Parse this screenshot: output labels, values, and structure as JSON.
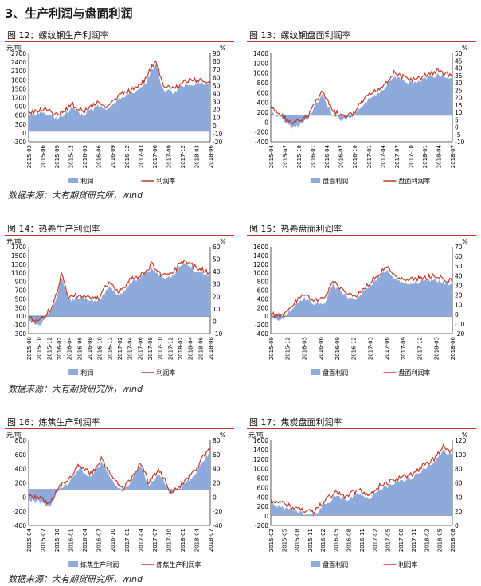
{
  "section_title": "3、生产利润与盘面利润",
  "source_text": "数据来源：大有期货研究所，wind",
  "colors": {
    "area": "#8eaadb",
    "line": "#c0392b",
    "title_rule": "#c0392b"
  },
  "charts": [
    {
      "title": "图 12：螺纹钢生产利润率",
      "left_unit": "元/吨",
      "right_unit": "%",
      "left_ticks": [
        "2700",
        "2400",
        "2100",
        "1800",
        "1500",
        "1200",
        "900",
        "600",
        "300",
        "0",
        "-300"
      ],
      "right_ticks": [
        "90",
        "80",
        "70",
        "60",
        "50",
        "40",
        "30",
        "20",
        "10",
        "0",
        "-10",
        "-20"
      ],
      "x_ticks": [
        "2015-03",
        "2015-06",
        "2015-09",
        "2015-12",
        "2016-03",
        "2016-06",
        "2016-09",
        "2016-12",
        "2017-03",
        "2017-06",
        "2017-09",
        "2017-12",
        "2018-03",
        "2018-06"
      ],
      "legend": [
        "利润",
        "利润率"
      ]
    },
    {
      "title": "图 13：螺纹钢盘面利润率",
      "left_unit": "",
      "right_unit": "%",
      "left_ticks": [
        "1400",
        "1200",
        "1000",
        "800",
        "600",
        "400",
        "200",
        "0",
        "-200",
        "-400"
      ],
      "right_ticks": [
        "50",
        "45",
        "40",
        "35",
        "30",
        "25",
        "20",
        "15",
        "10",
        "5",
        "0",
        "-5",
        "-10"
      ],
      "x_ticks": [
        "2015-04",
        "2015-07",
        "2015-10",
        "2016-01",
        "2016-04",
        "2016-07",
        "2016-10",
        "2017-01",
        "2017-04",
        "2017-07",
        "2017-10",
        "2018-01",
        "2018-04",
        "2018-07"
      ],
      "legend": [
        "盘面利润",
        "盘面利润率"
      ]
    },
    {
      "title": "图 14：热卷生产利润率",
      "left_unit": "元/吨",
      "right_unit": "%",
      "left_ticks": [
        "1700",
        "1500",
        "1300",
        "1100",
        "900",
        "700",
        "500",
        "300",
        "100",
        "-100",
        "-300"
      ],
      "right_ticks": [
        "60",
        "50",
        "40",
        "30",
        "20",
        "10",
        "0",
        "-10"
      ],
      "x_ticks": [
        "2015-08",
        "2015-10",
        "2015-12",
        "2016-02",
        "2016-04",
        "2016-06",
        "2016-08",
        "2016-10",
        "2016-12",
        "2017-02",
        "2017-04",
        "2017-06",
        "2017-08",
        "2017-10",
        "2017-12",
        "2018-02",
        "2018-04",
        "2018-06",
        "2018-08"
      ],
      "legend": [
        "利润",
        "利润率"
      ]
    },
    {
      "title": "图 15：热卷盘面利润率",
      "left_unit": "",
      "right_unit": "%",
      "left_ticks": [
        "1600",
        "1400",
        "1200",
        "1000",
        "800",
        "600",
        "400",
        "200",
        "0",
        "-200",
        "-400"
      ],
      "right_ticks": [
        "70",
        "60",
        "50",
        "40",
        "30",
        "20",
        "10",
        "0",
        "-10",
        "-20"
      ],
      "x_ticks": [
        "2015-09",
        "2015-12",
        "2016-03",
        "2016-06",
        "2016-09",
        "2016-12",
        "2017-03",
        "2017-06",
        "2017-09",
        "2017-12",
        "2018-03",
        "2018-06"
      ],
      "legend": [
        "盘面利润",
        "盘面利润率"
      ]
    },
    {
      "title": "图 16：炼焦生产利润率",
      "left_unit": "元/吨",
      "right_unit": "%",
      "left_ticks": [
        "800",
        "600",
        "400",
        "200",
        "0",
        "-200",
        "-400"
      ],
      "right_ticks": [
        "80",
        "60",
        "40",
        "20",
        "0",
        "-20",
        "-40"
      ],
      "x_ticks": [
        "2015-04",
        "2015-07",
        "2015-10",
        "2016-01",
        "2016-04",
        "2016-07",
        "2016-10",
        "2017-01",
        "2017-04",
        "2017-07",
        "2017-10",
        "2018-01",
        "2018-04",
        "2018-07"
      ],
      "legend": [
        "炼焦生产利润",
        "炼焦生产利润率"
      ]
    },
    {
      "title": "图 17：焦炭盘面利润率",
      "left_unit": "元/吨",
      "right_unit": "%",
      "left_ticks": [
        "1600",
        "1400",
        "1200",
        "1000",
        "800",
        "600",
        "400",
        "200",
        "0",
        "-200"
      ],
      "right_ticks": [
        "120",
        "100",
        "80",
        "60",
        "40",
        "20",
        "0"
      ],
      "x_ticks": [
        "2015-02",
        "2015-05",
        "2015-08",
        "2015-11",
        "2016-02",
        "2016-05",
        "2016-08",
        "2016-11",
        "2017-02",
        "2017-05",
        "2017-08",
        "2017-11",
        "2018-02",
        "2018-05",
        "2018-08"
      ],
      "legend": [
        "盘面利润",
        "利润率"
      ]
    }
  ]
}
